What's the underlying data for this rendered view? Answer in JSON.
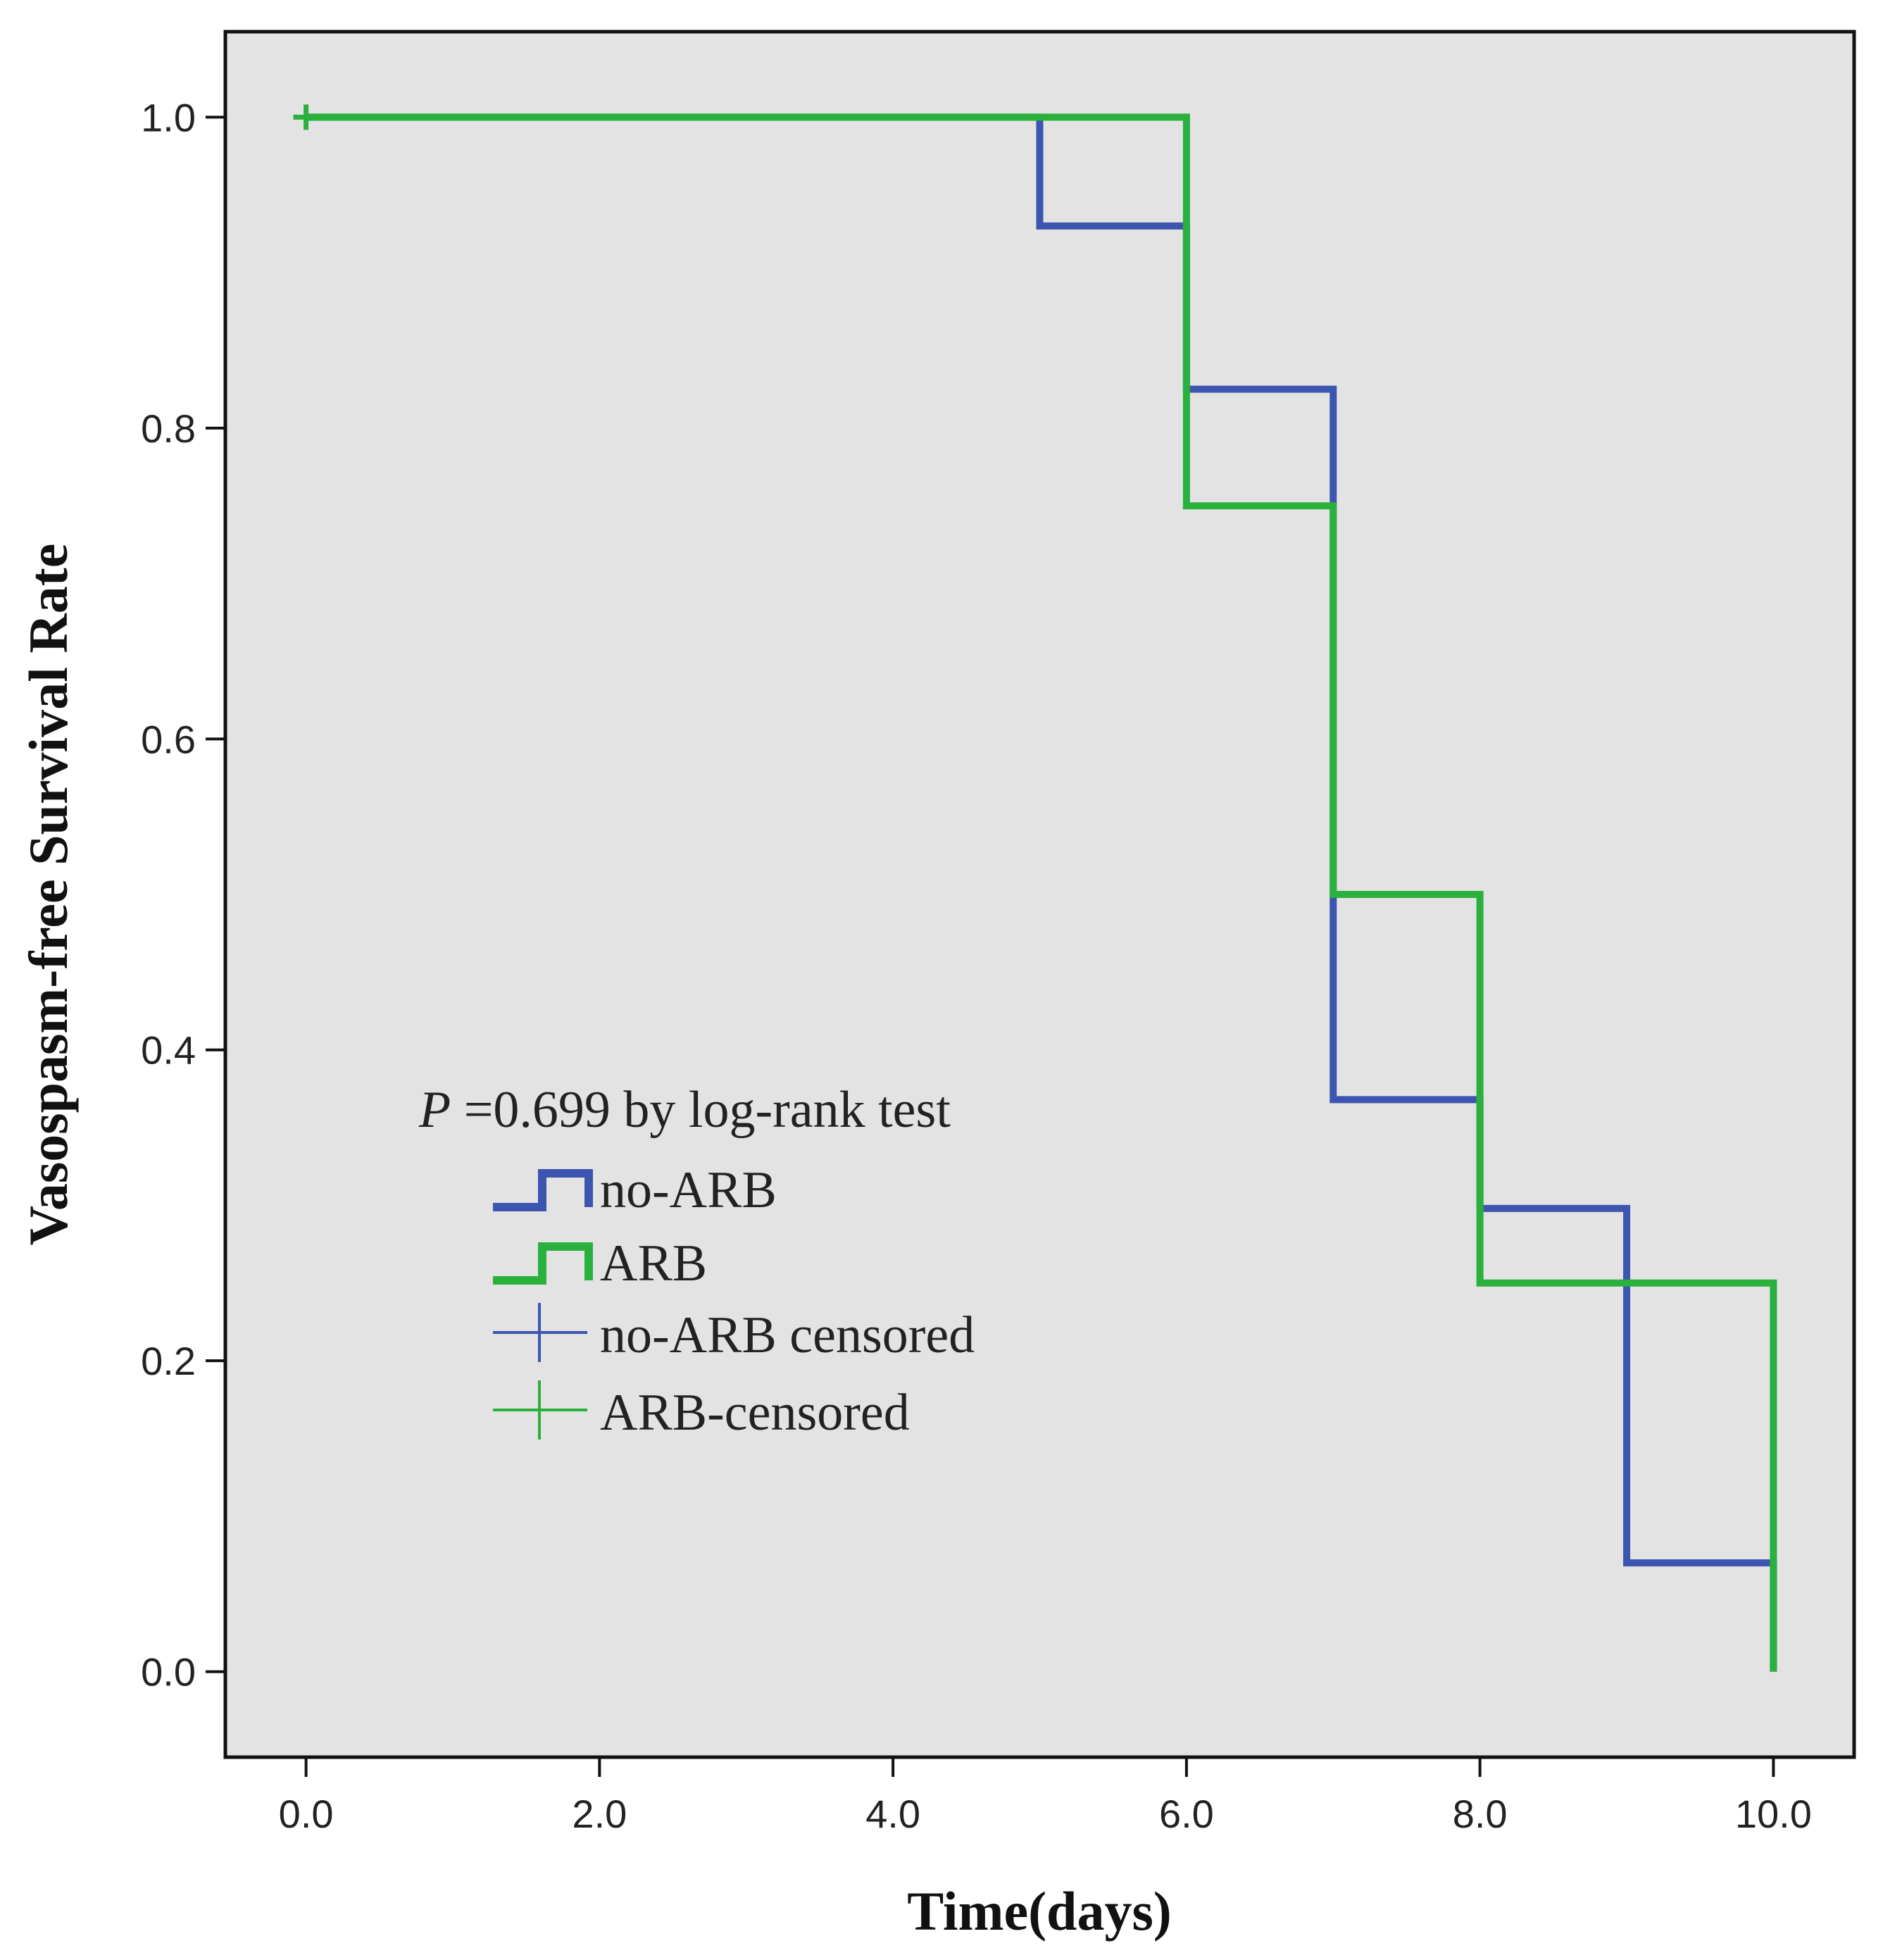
{
  "chart_data": {
    "type": "line",
    "subtype": "kaplan-meier-step",
    "xlabel": "Time(days)",
    "ylabel": "Vasospasm-free Survival Rate",
    "xlim": [
      -0.55,
      10.55
    ],
    "ylim": [
      -0.055,
      1.055
    ],
    "x_ticks": [
      0,
      2,
      4,
      6,
      8,
      10
    ],
    "x_tick_labels": [
      "0.0",
      "2.0",
      "4.0",
      "6.0",
      "8.0",
      "10.0"
    ],
    "y_ticks": [
      0,
      0.2,
      0.4,
      0.6,
      0.8,
      1.0
    ],
    "y_tick_labels": [
      "0.0",
      "0.2",
      "0.4",
      "0.6",
      "0.8",
      "1.0"
    ],
    "grid": false,
    "background_color": "#e3e3e3",
    "annotation": {
      "p_symbol": "P",
      "text": " =0.699 by log-rank test"
    },
    "legend_position": "lower-left",
    "series": [
      {
        "name": "no-ARB",
        "color": "#3c55b0",
        "steps": [
          {
            "time": 0,
            "survival": 1.0
          },
          {
            "time": 5,
            "survival": 0.93
          },
          {
            "time": 6,
            "survival": 0.825
          },
          {
            "time": 7,
            "survival": 0.368
          },
          {
            "time": 8,
            "survival": 0.298
          },
          {
            "time": 9,
            "survival": 0.07
          },
          {
            "time": 10,
            "survival": 0.0
          }
        ]
      },
      {
        "name": "ARB",
        "color": "#2ab03c",
        "steps": [
          {
            "time": 0,
            "survival": 1.0
          },
          {
            "time": 6,
            "survival": 0.75
          },
          {
            "time": 7,
            "survival": 0.5
          },
          {
            "time": 8,
            "survival": 0.25
          },
          {
            "time": 10,
            "survival": 0.0
          }
        ]
      }
    ],
    "censored": [
      {
        "series": "ARB",
        "time": 0,
        "survival": 1.0
      }
    ],
    "legend": [
      {
        "label": "no-ARB",
        "kind": "step",
        "color": "#3c55b0"
      },
      {
        "label": "ARB",
        "kind": "step",
        "color": "#2ab03c"
      },
      {
        "label": "no-ARB censored",
        "kind": "censor",
        "color": "#3c55b0"
      },
      {
        "label": "ARB-censored",
        "kind": "censor",
        "color": "#2ab03c"
      }
    ]
  }
}
